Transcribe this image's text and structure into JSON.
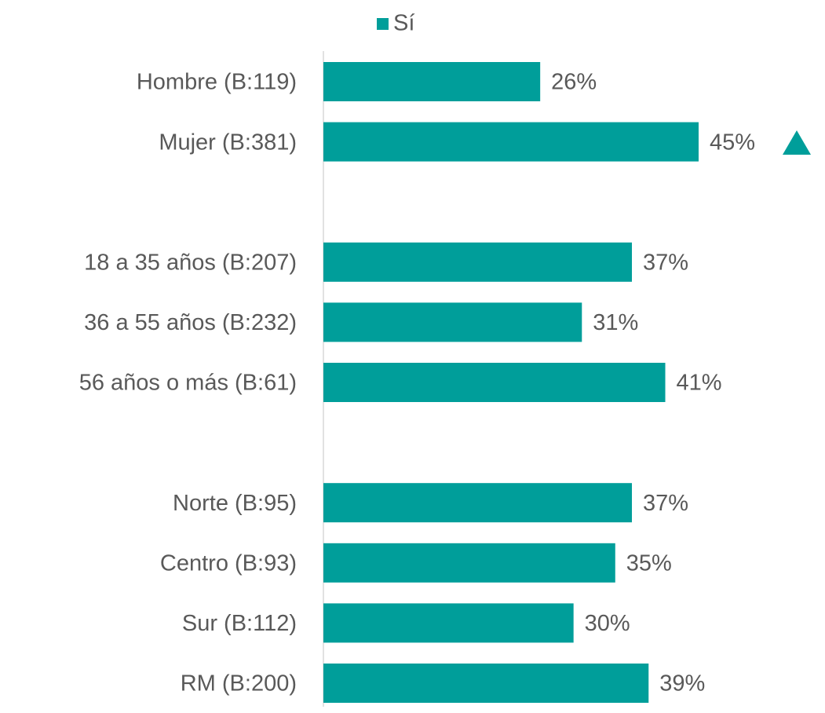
{
  "chart_data": {
    "type": "barh",
    "categories": [
      "Hombre (B:119)",
      "Mujer (B:381)",
      null,
      "18 a 35 años (B:207)",
      "36 a 55 años (B:232)",
      "56 años o más (B:61)",
      null,
      "Norte (B:95)",
      "Centro (B:93)",
      "Sur (B:112)",
      "RM (B:200)"
    ],
    "series": [
      {
        "name": "Sí",
        "color": "#009e9a",
        "values": [
          26,
          45,
          null,
          37,
          31,
          41,
          null,
          37,
          35,
          30,
          39
        ],
        "value_labels": [
          "26%",
          "45%",
          null,
          "37%",
          "31%",
          "41%",
          null,
          "37%",
          "35%",
          "30%",
          "39%"
        ]
      }
    ],
    "legend": "top"
  }
}
